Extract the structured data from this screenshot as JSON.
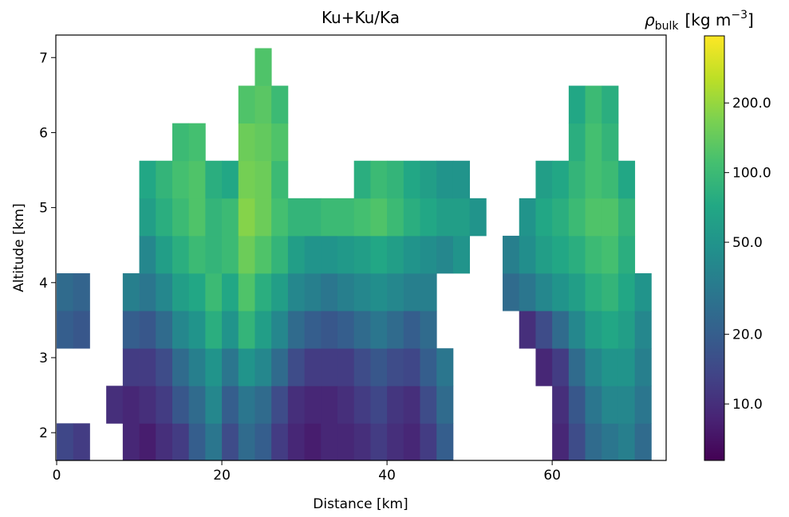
{
  "chart_data": {
    "type": "heatmap",
    "title": "Ku+Ku/Ka",
    "x_label": "Distance [km]",
    "y_label": "Altitude [km]",
    "colorbar_label": {
      "symbol": "ρ",
      "subscript": "bulk",
      "unit": "[kg m",
      "exponent": "−3",
      "close": "]"
    },
    "colormap": "viridis",
    "log_color": true,
    "clim": [
      5.7,
      390
    ],
    "colorbar_ticks": [
      {
        "value": 10,
        "label": "10.0"
      },
      {
        "value": 20,
        "label": "20.0"
      },
      {
        "value": 50,
        "label": "50.0"
      },
      {
        "value": 100,
        "label": "100.0"
      },
      {
        "value": 200,
        "label": "200.0"
      }
    ],
    "xlim": [
      -0.1,
      73.8
    ],
    "ylim": [
      1.63,
      7.3
    ],
    "xticks": [
      0,
      20,
      40,
      60
    ],
    "yticks": [
      2,
      3,
      4,
      5,
      6,
      7
    ],
    "x": [
      1,
      3,
      5,
      7,
      9,
      11,
      13,
      15,
      17,
      19,
      21,
      23,
      25,
      27,
      29,
      31,
      33,
      35,
      37,
      39,
      41,
      43,
      45,
      47,
      49,
      51,
      53,
      55,
      57,
      59,
      61,
      63,
      65,
      67,
      69,
      71
    ],
    "y": [
      1.875,
      2.375,
      2.875,
      3.375,
      3.875,
      4.375,
      4.875,
      5.375,
      5.875,
      6.375,
      6.875
    ],
    "z": [
      [
        14,
        12,
        null,
        null,
        9,
        8,
        10,
        12,
        20,
        30,
        15,
        25,
        20,
        12,
        9,
        8,
        9,
        9,
        10,
        12,
        10,
        9,
        12,
        20,
        null,
        null,
        null,
        null,
        null,
        null,
        9,
        15,
        25,
        30,
        35,
        25
      ],
      [
        null,
        null,
        null,
        10,
        9,
        10,
        12,
        18,
        25,
        40,
        20,
        30,
        25,
        15,
        10,
        9,
        9,
        10,
        12,
        14,
        11,
        10,
        15,
        25,
        null,
        null,
        null,
        null,
        null,
        null,
        10,
        18,
        30,
        40,
        40,
        30
      ],
      [
        null,
        null,
        null,
        null,
        12,
        12,
        15,
        25,
        35,
        50,
        30,
        50,
        40,
        25,
        15,
        12,
        12,
        12,
        15,
        18,
        15,
        14,
        20,
        30,
        null,
        null,
        null,
        null,
        null,
        9,
        12,
        25,
        40,
        50,
        50,
        35
      ],
      [
        20,
        18,
        null,
        null,
        20,
        18,
        25,
        40,
        50,
        80,
        50,
        90,
        60,
        40,
        25,
        20,
        18,
        20,
        25,
        30,
        25,
        20,
        25,
        null,
        null,
        null,
        null,
        null,
        10,
        15,
        25,
        40,
        60,
        70,
        60,
        40
      ],
      [
        25,
        22,
        null,
        null,
        35,
        30,
        40,
        60,
        70,
        100,
        70,
        120,
        80,
        60,
        40,
        35,
        30,
        35,
        40,
        45,
        40,
        35,
        35,
        null,
        null,
        null,
        null,
        25,
        30,
        40,
        50,
        60,
        80,
        90,
        70,
        50
      ],
      [
        null,
        null,
        null,
        null,
        null,
        40,
        60,
        80,
        100,
        90,
        100,
        150,
        120,
        90,
        60,
        50,
        50,
        55,
        60,
        70,
        60,
        50,
        45,
        40,
        50,
        null,
        null,
        35,
        45,
        60,
        70,
        80,
        100,
        110,
        80,
        null
      ],
      [
        null,
        null,
        null,
        null,
        null,
        60,
        80,
        100,
        120,
        90,
        100,
        180,
        150,
        110,
        90,
        90,
        100,
        100,
        110,
        120,
        100,
        80,
        70,
        60,
        60,
        50,
        null,
        null,
        50,
        70,
        80,
        100,
        120,
        120,
        90,
        null
      ],
      [
        null,
        null,
        null,
        null,
        null,
        70,
        90,
        110,
        120,
        80,
        70,
        160,
        150,
        100,
        null,
        null,
        null,
        null,
        80,
        100,
        90,
        70,
        60,
        50,
        50,
        null,
        null,
        null,
        null,
        60,
        70,
        90,
        110,
        100,
        70,
        null
      ],
      [
        null,
        null,
        null,
        null,
        null,
        null,
        null,
        100,
        110,
        null,
        null,
        150,
        140,
        120,
        null,
        null,
        null,
        null,
        null,
        null,
        null,
        null,
        null,
        null,
        null,
        null,
        null,
        null,
        null,
        null,
        null,
        80,
        110,
        90,
        null,
        null
      ],
      [
        null,
        null,
        null,
        null,
        null,
        null,
        null,
        null,
        null,
        null,
        null,
        120,
        130,
        100,
        null,
        null,
        null,
        null,
        null,
        null,
        null,
        null,
        null,
        null,
        null,
        null,
        null,
        null,
        null,
        null,
        null,
        70,
        100,
        80,
        null,
        null
      ],
      [
        null,
        null,
        null,
        null,
        null,
        null,
        null,
        null,
        null,
        null,
        null,
        null,
        120,
        null,
        null,
        null,
        null,
        null,
        null,
        null,
        null,
        null,
        null,
        null,
        null,
        null,
        null,
        null,
        null,
        null,
        null,
        null,
        null,
        null,
        null,
        null
      ]
    ]
  }
}
